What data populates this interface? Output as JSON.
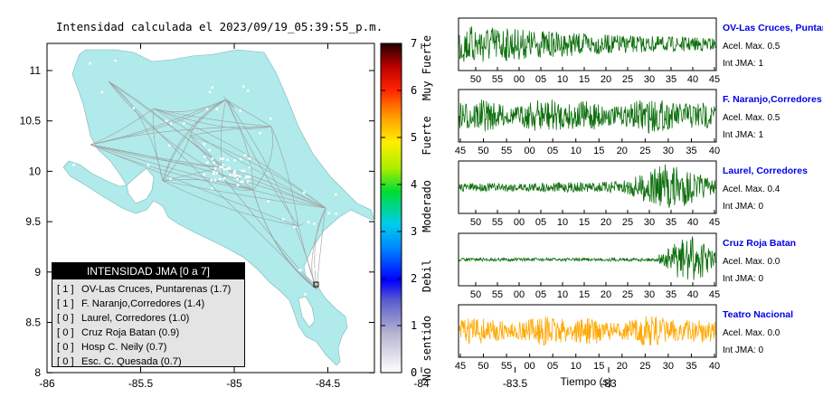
{
  "map": {
    "title": "Intensidad calculada el 2023/09/19_05:39:55_p.m.",
    "x_ticks": [
      "-86",
      "-85.5",
      "-85",
      "-84.5",
      "-84",
      "-83.5",
      "-83"
    ],
    "y_ticks": [
      "11",
      "10.5",
      "10",
      "9.5",
      "9",
      "8.5",
      "8"
    ],
    "land_color": "#b0eaea",
    "road_color": "#9e9e9e"
  },
  "legend": {
    "title": "INTENSIDAD JMA [0 a 7]",
    "items": [
      {
        "level": "[ 1 ]",
        "text": "OV-Las Cruces, Puntarenas (1.7)"
      },
      {
        "level": "[ 1 ]",
        "text": "F. Naranjo,Corredores (1.4)"
      },
      {
        "level": "[ 0 ]",
        "text": "Laurel, Corredores (1.0)"
      },
      {
        "level": "[ 0 ]",
        "text": "Cruz Roja Batan (0.9)"
      },
      {
        "level": "[ 0 ]",
        "text": "Hosp C. Neily (0.7)"
      },
      {
        "level": "[ 0 ]",
        "text": "Esc. C. Quesada (0.7)"
      }
    ]
  },
  "colorbar": {
    "ticks": [
      "0",
      "1",
      "2",
      "3",
      "4",
      "5",
      "6",
      "7"
    ],
    "labels": [
      "No sentido",
      "Debil",
      "Moderado",
      "Fuerte",
      "Muy Fuerte"
    ]
  },
  "waveforms": {
    "xlabel": "Tiempo (s)",
    "normal_color": "#0b6e0b",
    "highlight_color": "#ffa800",
    "max_label": "Acel. Max.",
    "jma_label": "Int JMA:"
  },
  "chart_data": [
    {
      "type": "line",
      "title": "OV-Las Cruces, Puntar",
      "xlabel": "",
      "x_tick_labels": [
        "50",
        "55",
        "00",
        "05",
        "10",
        "15",
        "20",
        "25",
        "30",
        "35",
        "40",
        "45"
      ],
      "accel_max": "0.5",
      "jma": "1",
      "profile": "early",
      "amplitude": 0.85
    },
    {
      "type": "line",
      "title": "F. Naranjo,Corredores",
      "xlabel": "",
      "x_tick_labels": [
        "45",
        "50",
        "55",
        "00",
        "05",
        "10",
        "15",
        "20",
        "25",
        "30",
        "35",
        "40"
      ],
      "accel_max": "0.5",
      "jma": "1",
      "profile": "uniform",
      "amplitude": 0.8
    },
    {
      "type": "line",
      "title": "Laurel, Corredores",
      "xlabel": "",
      "x_tick_labels": [
        "50",
        "55",
        "00",
        "05",
        "10",
        "15",
        "20",
        "25",
        "30",
        "35",
        "40",
        "45"
      ],
      "accel_max": "0.4",
      "jma": "0",
      "profile": "late",
      "amplitude": 0.9
    },
    {
      "type": "line",
      "title": "Cruz Roja Batan",
      "xlabel": "",
      "x_tick_labels": [
        "50",
        "55",
        "00",
        "05",
        "10",
        "15",
        "20",
        "25",
        "30",
        "35",
        "40",
        "45"
      ],
      "accel_max": "0.0",
      "jma": "0",
      "profile": "burst",
      "amplitude": 0.95
    },
    {
      "type": "line",
      "title": "Teatro Nacional",
      "xlabel": "Tiempo (s)",
      "x_tick_labels": [
        "45",
        "50",
        "55",
        "00",
        "05",
        "10",
        "15",
        "20",
        "25",
        "30",
        "35",
        "40"
      ],
      "accel_max": "0.0",
      "jma": "0",
      "profile": "uniform",
      "amplitude": 0.7
    }
  ]
}
